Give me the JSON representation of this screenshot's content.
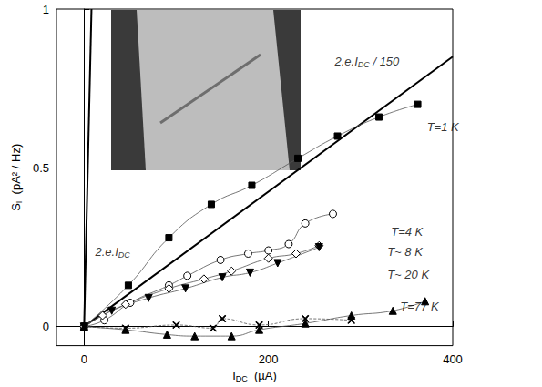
{
  "chart_data": {
    "type": "scatter",
    "color": "#000000",
    "grid": false,
    "x_label": {
      "text": "I",
      "sub": "DC",
      "after": "  (µA)"
    },
    "y_label": {
      "text": "S",
      "sub": "I",
      "after": "  (pA² / Hz)"
    },
    "xlim": [
      -30,
      400
    ],
    "xticks": [
      0,
      200,
      400
    ],
    "ylim": [
      -0.06,
      1
    ],
    "yticks": [
      0,
      0.5,
      1
    ],
    "series": [
      {
        "type": "line",
        "marker": "none",
        "line_style": "solid",
        "x": [
          0,
          8
        ],
        "values": [
          0,
          1
        ]
      },
      {
        "type": "line",
        "marker": "none",
        "line_style": "solid",
        "x": [
          0,
          400
        ],
        "values": [
          0,
          0.85
        ]
      },
      {
        "type": "scatter",
        "marker": "square",
        "line_style": "solid",
        "x": [
          0,
          48,
          92,
          138,
          182,
          232,
          275,
          320,
          362
        ],
        "values": [
          0,
          0.13,
          0.28,
          0.385,
          0.445,
          0.53,
          0.6,
          0.66,
          0.7
        ]
      },
      {
        "type": "scatter",
        "marker": "circle_open",
        "line_style": "solid",
        "x": [
          0,
          22,
          50,
          92,
          112,
          148,
          178,
          200,
          222,
          240,
          270
        ],
        "values": [
          0,
          0.02,
          0.075,
          0.13,
          0.16,
          0.21,
          0.23,
          0.24,
          0.26,
          0.325,
          0.355
        ]
      },
      {
        "type": "scatter",
        "marker": "diamond_open",
        "line_style": "solid",
        "x": [
          0,
          20,
          45,
          92,
          130,
          160,
          200,
          230,
          255
        ],
        "values": [
          0,
          0.035,
          0.07,
          0.12,
          0.15,
          0.175,
          0.215,
          0.23,
          0.255
        ]
      },
      {
        "type": "scatter",
        "marker": "triangle_down",
        "line_style": "solid",
        "x": [
          0,
          30,
          70,
          110,
          150,
          180,
          210,
          255
        ],
        "values": [
          0,
          0.05,
          0.09,
          0.12,
          0.155,
          0.17,
          0.2,
          0.25
        ]
      },
      {
        "type": "scatter",
        "marker": "triangle",
        "line_style": "solid",
        "x": [
          0,
          45,
          90,
          120,
          160,
          190,
          240,
          290,
          335,
          370
        ],
        "values": [
          0,
          -0.01,
          -0.025,
          -0.03,
          -0.03,
          -0.01,
          0.01,
          0.035,
          0.05,
          0.08
        ]
      },
      {
        "type": "scatter",
        "marker": "x",
        "line_style": "dashed",
        "x": [
          0,
          45,
          100,
          140,
          150,
          190,
          240,
          290
        ],
        "values": [
          0,
          -0.005,
          0.005,
          -0.005,
          0.025,
          0.005,
          0.025,
          0.02
        ]
      }
    ],
    "annotations": [
      {
        "text": "2.e.I",
        "sub": "DC",
        "after": "",
        "x": 12,
        "y": 0.235
      },
      {
        "text": "2.e.I",
        "sub": "DC",
        "after": " / 150",
        "x": 272,
        "y": 0.835
      },
      {
        "text": "T=1 K",
        "sub": "",
        "after": "",
        "x": 372,
        "y": 0.63
      },
      {
        "text": "T=4 K",
        "sub": "",
        "after": "",
        "x": 333,
        "y": 0.3
      },
      {
        "text": "T~ 8 K",
        "sub": "",
        "after": "",
        "x": 329,
        "y": 0.235
      },
      {
        "text": "T~ 20 K",
        "sub": "",
        "after": "",
        "x": 329,
        "y": 0.165
      },
      {
        "text": "T=77 K",
        "sub": "",
        "after": "",
        "x": 343,
        "y": 0.065
      }
    ]
  }
}
